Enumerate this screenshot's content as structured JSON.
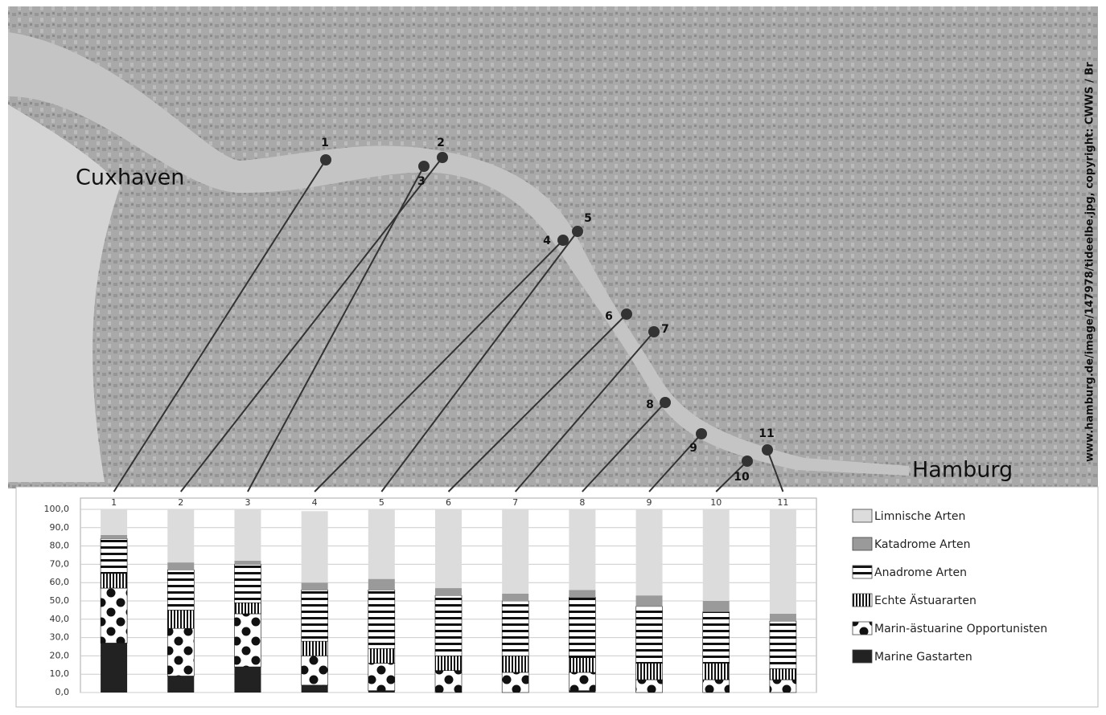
{
  "map": {
    "places": [
      "Cuxhaven",
      "Hamburg"
    ],
    "credit": "www.hamburg.de/image/147978/tideelbe.jpg, copyright: CWWS / Br",
    "stations": [
      "1",
      "2",
      "3",
      "4",
      "5",
      "6",
      "7",
      "8",
      "9",
      "10",
      "11"
    ]
  },
  "chart_data": {
    "type": "stacked-bar",
    "categories": [
      "1",
      "2",
      "3",
      "4",
      "5",
      "6",
      "7",
      "8",
      "9",
      "10",
      "11"
    ],
    "series": [
      {
        "name": "Marine Gastarten",
        "color": "#222222",
        "pattern": "solid",
        "values": [
          27,
          9,
          14,
          4,
          1,
          0,
          0,
          1,
          0,
          0,
          0
        ]
      },
      {
        "name": "Marin-ästuarine Opportunisten",
        "color": "#222222",
        "pattern": "dots",
        "values": [
          30,
          26,
          29,
          16,
          15,
          12,
          11,
          10,
          7,
          7,
          7
        ]
      },
      {
        "name": "Echte Ästuararten",
        "color": "#222222",
        "pattern": "vstripes",
        "values": [
          8,
          10,
          6,
          8,
          8,
          8,
          9,
          8,
          9,
          9,
          6
        ]
      },
      {
        "name": "Anadrome Arten",
        "color": "#222222",
        "pattern": "hstripes",
        "values": [
          19,
          22,
          21,
          28,
          32,
          33,
          30,
          33,
          31,
          28,
          26
        ]
      },
      {
        "name": "Katadrome Arten",
        "color": "#9a9a9a",
        "pattern": "solid",
        "values": [
          2,
          4,
          2,
          4,
          6,
          4,
          4,
          4,
          6,
          6,
          4
        ]
      },
      {
        "name": "Limnische Arten",
        "color": "#dcdcdc",
        "pattern": "solid",
        "values": [
          14,
          29,
          28,
          39,
          38,
          43,
          46,
          44,
          47,
          50,
          57
        ]
      }
    ],
    "ylim": [
      0,
      100
    ],
    "yticks": [
      {
        "value": 0,
        "label": "0,0"
      },
      {
        "value": 10,
        "label": "10,0"
      },
      {
        "value": 20,
        "label": "20,0"
      },
      {
        "value": 30,
        "label": "30,0"
      },
      {
        "value": 40,
        "label": "40,0"
      },
      {
        "value": 50,
        "label": "50,0"
      },
      {
        "value": 60,
        "label": "60,0"
      },
      {
        "value": 70,
        "label": "70,0"
      },
      {
        "value": 80,
        "label": "80,0"
      },
      {
        "value": 90,
        "label": "90,0"
      },
      {
        "value": 100,
        "label": "100,0"
      }
    ],
    "grid": true
  }
}
